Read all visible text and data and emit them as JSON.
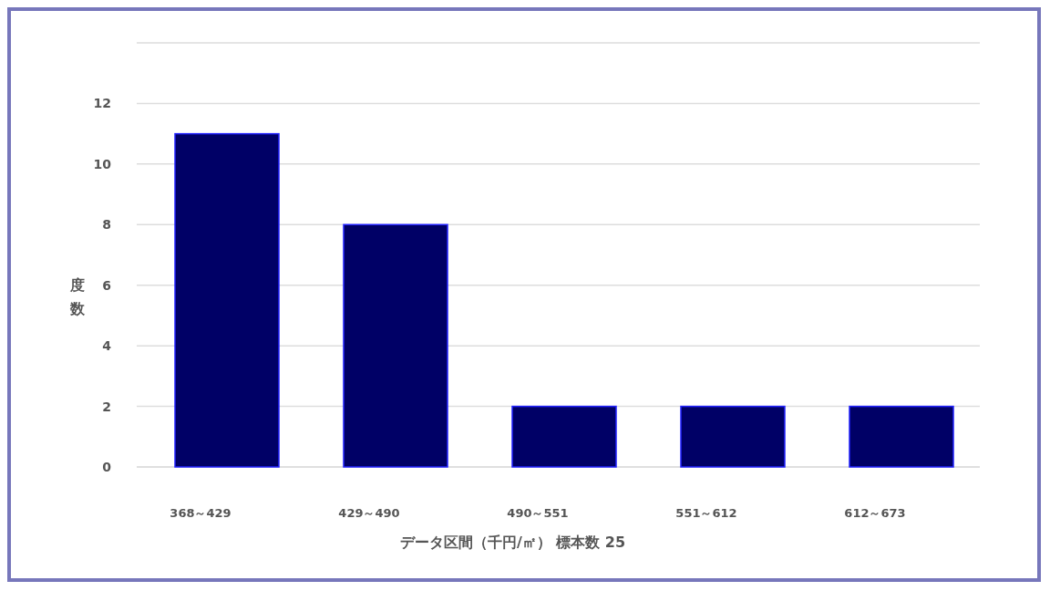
{
  "chart_data": {
    "type": "bar",
    "xlabel": "データ区間（千円/㎡） 標本数 25",
    "ylabel": "度数",
    "categories": [
      "368～429",
      "429～490",
      "490～551",
      "551～612",
      "612～673"
    ],
    "values": [
      11,
      8,
      2,
      2,
      2
    ],
    "color": "#000066",
    "ylim": [
      0,
      14
    ],
    "yticks": [
      0,
      2,
      4,
      6,
      8,
      10,
      12,
      {
        "value": 14,
        "label": null
      }
    ],
    "grid": "y"
  }
}
